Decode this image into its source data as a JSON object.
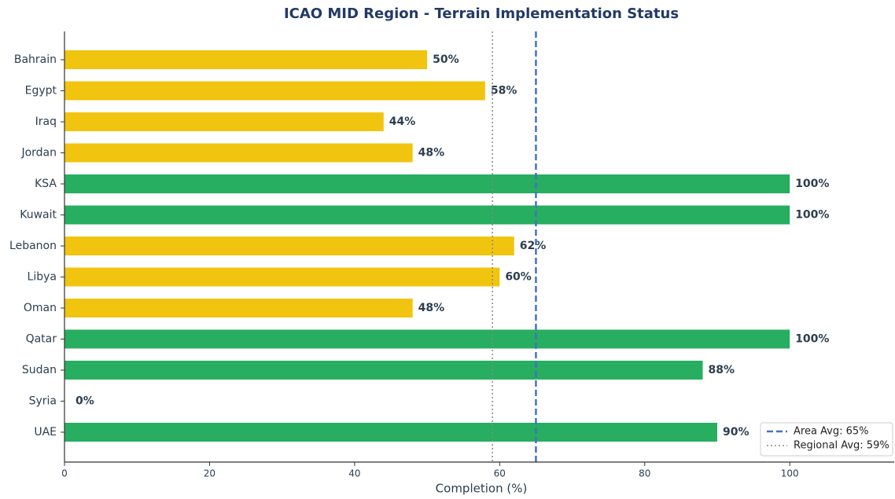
{
  "chart_data": {
    "type": "barh",
    "title": "ICAO MID Region - Terrain Implementation Status",
    "xlabel": "Completion (%)",
    "categories": [
      "Bahrain",
      "Egypt",
      "Iraq",
      "Jordan",
      "KSA",
      "Kuwait",
      "Lebanon",
      "Libya",
      "Oman",
      "Qatar",
      "Sudan",
      "Syria",
      "UAE"
    ],
    "values": [
      50,
      58,
      44,
      48,
      100,
      100,
      62,
      60,
      48,
      100,
      88,
      0,
      90
    ],
    "value_labels": [
      "50%",
      "58%",
      "44%",
      "48%",
      "100%",
      "100%",
      "62%",
      "60%",
      "48%",
      "100%",
      "88%",
      "0%",
      "90%"
    ],
    "colors": [
      "#f1c40f",
      "#f1c40f",
      "#f1c40f",
      "#f1c40f",
      "#27ae60",
      "#27ae60",
      "#f1c40f",
      "#f1c40f",
      "#f1c40f",
      "#27ae60",
      "#27ae60",
      "#f1c40f",
      "#27ae60"
    ],
    "xlim": [
      0,
      114.4
    ],
    "xticks": [
      0,
      20,
      40,
      60,
      80,
      100
    ],
    "reference_lines": [
      {
        "name": "Area Avg: 65%",
        "value": 65,
        "color": "#4472c4",
        "style": "dashed"
      },
      {
        "name": "Regional Avg: 59%",
        "value": 59,
        "color": "#888888",
        "style": "dotted"
      }
    ],
    "legend": "lower right"
  }
}
